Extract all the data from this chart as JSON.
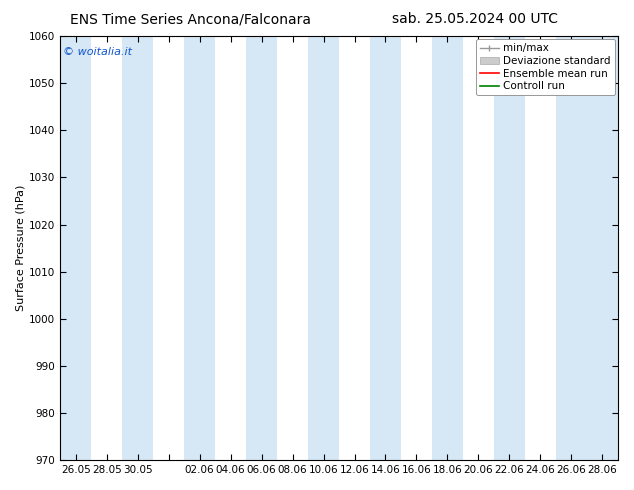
{
  "title_left": "ENS Time Series Ancona/Falconara",
  "title_right": "sab. 25.05.2024 00 UTC",
  "ylabel": "Surface Pressure (hPa)",
  "ylim": [
    970,
    1060
  ],
  "yticks": [
    970,
    980,
    990,
    1000,
    1010,
    1020,
    1030,
    1040,
    1050,
    1060
  ],
  "x_tick_labels": [
    "26.05",
    "28.05",
    "30.05",
    "",
    "02.06",
    "04.06",
    "06.06",
    "08.06",
    "10.06",
    "12.06",
    "14.06",
    "16.06",
    "18.06",
    "20.06",
    "22.06",
    "24.06",
    "26.06",
    "28.06"
  ],
  "watermark": "© woitalia.it",
  "bg_color": "#ffffff",
  "band_color": "#d6e8f5",
  "title_fontsize": 10,
  "tick_fontsize": 7.5,
  "ylabel_fontsize": 8,
  "legend_fontsize": 7.5
}
